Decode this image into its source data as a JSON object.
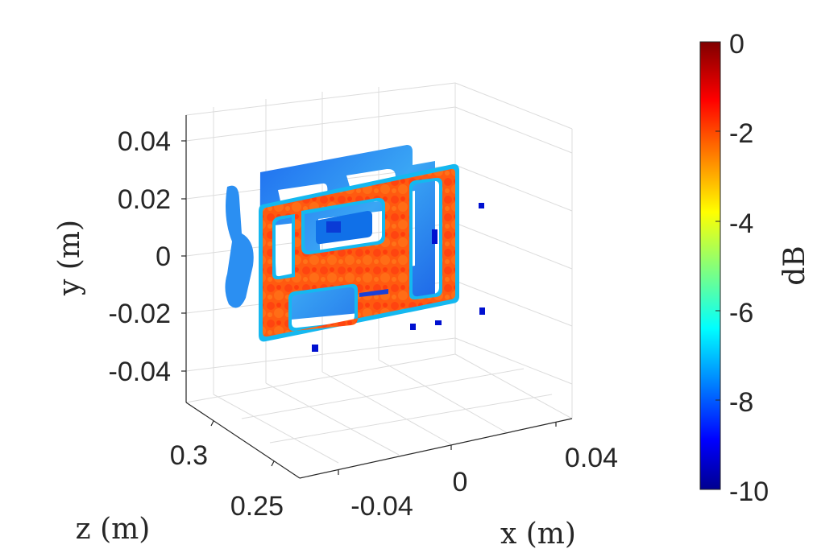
{
  "chart_data": {
    "type": "heatmap",
    "view": "3d",
    "title": "",
    "xlabel": "x (m)",
    "ylabel": "y (m)",
    "zlabel": "z (m)",
    "x_ticks": [
      "-0.04",
      "0",
      "0.04"
    ],
    "y_ticks": [
      "0.04",
      "0.02",
      "0",
      "-0.02",
      "-0.04"
    ],
    "z_ticks": [
      "0.3",
      "0.25"
    ],
    "xlim": [
      -0.05,
      0.05
    ],
    "ylim": [
      -0.05,
      0.05
    ],
    "zlim": [
      0.24,
      0.32
    ],
    "grid": true,
    "colormap": "jet",
    "colorbar": {
      "label": "dB",
      "range": [
        -10,
        0
      ],
      "ticks": [
        "0",
        "-2",
        "-4",
        "-6",
        "-8",
        "-10"
      ]
    },
    "layers": [
      {
        "description": "rear slice, mostly -8 to -6 dB",
        "level_db": -7.5
      },
      {
        "description": "front slice, frame near -1 dB with holes",
        "level_db": -1.5
      }
    ]
  }
}
